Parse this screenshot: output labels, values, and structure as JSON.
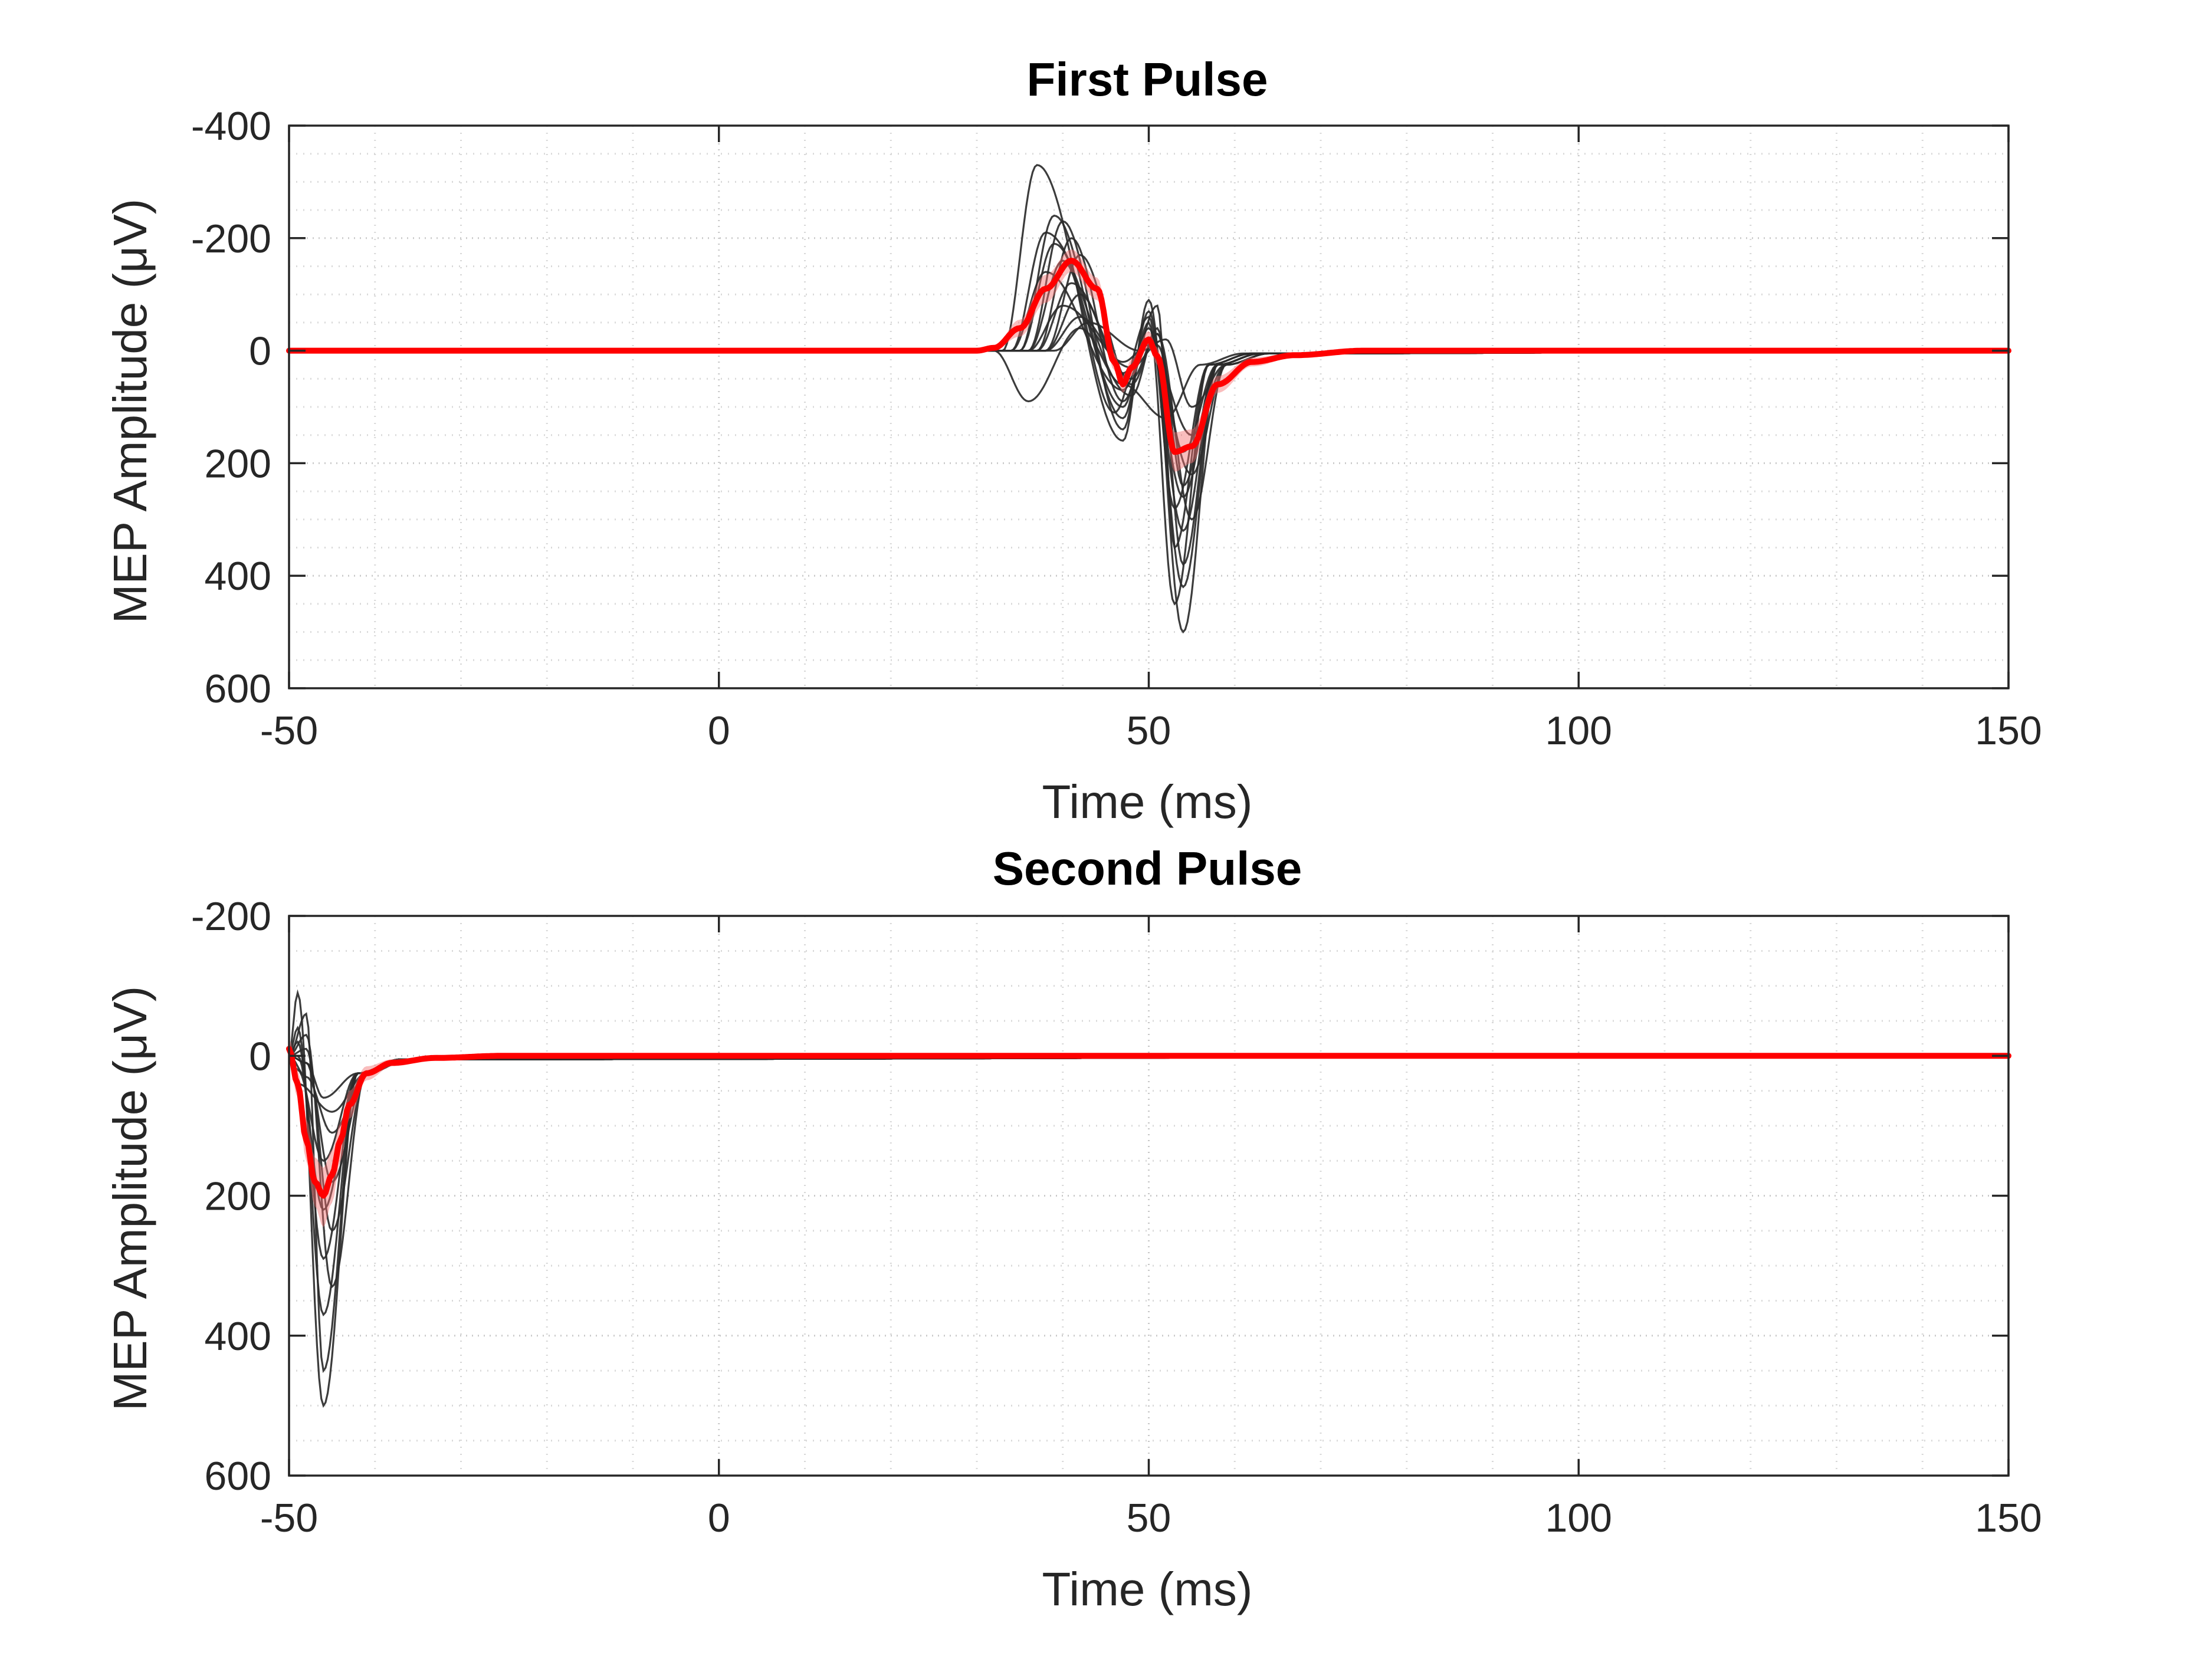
{
  "chart_data": [
    {
      "type": "line",
      "title": "First Pulse",
      "xlabel": "Time (ms)",
      "ylabel": "MEP Amplitude (μV)",
      "xlim": [
        -50,
        150
      ],
      "ylim": [
        -400,
        600
      ],
      "y_axis_reversed": true,
      "xticks": [
        -50,
        0,
        50,
        100,
        150
      ],
      "xtick_labels": [
        "-50",
        "0",
        "50",
        "100",
        "150"
      ],
      "yticks": [
        -400,
        -200,
        0,
        200,
        400,
        600
      ],
      "ytick_labels": [
        "-400",
        "-200",
        "0",
        "200",
        "400",
        "600"
      ],
      "grid": "minor dotted",
      "colors": {
        "trials": "#2b2b2b",
        "mean": "#ff0000",
        "band": "#f26c6c"
      },
      "trials": [
        {
          "peaks": [
            [
              37,
              -330
            ],
            [
              47,
              160
            ],
            [
              50,
              -90
            ],
            [
              54,
              500
            ]
          ]
        },
        {
          "peaks": [
            [
              39,
              -240
            ],
            [
              47,
              120
            ],
            [
              50,
              -50
            ],
            [
              53,
              450
            ]
          ]
        },
        {
          "peaks": [
            [
              40,
              -230
            ],
            [
              47,
              140
            ],
            [
              50,
              -70
            ],
            [
              54,
              420
            ]
          ]
        },
        {
          "peaks": [
            [
              38,
              -210
            ],
            [
              48,
              80
            ],
            [
              51,
              -40
            ],
            [
              54,
              380
            ]
          ]
        },
        {
          "peaks": [
            [
              41,
              -200
            ],
            [
              47,
              90
            ],
            [
              51,
              -80
            ],
            [
              53,
              350
            ]
          ]
        },
        {
          "peaks": [
            [
              39,
              -190
            ],
            [
              47,
              100
            ],
            [
              50,
              -40
            ],
            [
              54,
              320
            ]
          ]
        },
        {
          "peaks": [
            [
              42,
              -170
            ],
            [
              48,
              60
            ],
            [
              51,
              -30
            ],
            [
              55,
              300
            ]
          ]
        },
        {
          "peaks": [
            [
              40,
              -160
            ],
            [
              46,
              110
            ],
            [
              50,
              -60
            ],
            [
              53,
              280
            ]
          ]
        },
        {
          "peaks": [
            [
              38,
              -140
            ],
            [
              47,
              70
            ],
            [
              50,
              -20
            ],
            [
              54,
              260
            ]
          ]
        },
        {
          "peaks": [
            [
              41,
              -120
            ],
            [
              48,
              50
            ],
            [
              51,
              -30
            ],
            [
              54,
              240
            ]
          ]
        },
        {
          "peaks": [
            [
              42,
              -100
            ],
            [
              47,
              40
            ],
            [
              50,
              -20
            ],
            [
              55,
              220
            ]
          ]
        },
        {
          "peaks": [
            [
              40,
              -80
            ],
            [
              48,
              30
            ],
            [
              51,
              -10
            ],
            [
              54,
              180
            ]
          ]
        },
        {
          "peaks": [
            [
              42,
              -60
            ],
            [
              47,
              20
            ],
            [
              50,
              -10
            ],
            [
              55,
              150
            ]
          ]
        },
        {
          "peaks": [
            [
              36,
              90
            ],
            [
              42,
              -40
            ],
            [
              47,
              60
            ],
            [
              52,
              120
            ]
          ]
        },
        {
          "peaks": [
            [
              43,
              -50
            ],
            [
              49,
              0
            ],
            [
              52,
              -20
            ],
            [
              55,
              100
            ]
          ]
        }
      ],
      "mean": {
        "x": [
          -50,
          30,
          32,
          35,
          38,
          41,
          44,
          46,
          47,
          48,
          50,
          51,
          53,
          55,
          58,
          62,
          67,
          75,
          150
        ],
        "y": [
          0,
          0,
          -5,
          -40,
          -110,
          -160,
          -110,
          20,
          60,
          30,
          -20,
          10,
          180,
          170,
          60,
          20,
          8,
          0,
          0
        ]
      },
      "band": {
        "x": [
          -50,
          30,
          32,
          35,
          38,
          41,
          44,
          46,
          47,
          48,
          50,
          51,
          53,
          55,
          58,
          62,
          67,
          75,
          150
        ],
        "lower": [
          0,
          0,
          -8,
          -55,
          -135,
          -180,
          -130,
          5,
          45,
          15,
          -35,
          -5,
          145,
          140,
          45,
          12,
          4,
          0,
          0
        ],
        "upper": [
          0,
          0,
          -2,
          -25,
          -85,
          -140,
          -90,
          35,
          75,
          45,
          -5,
          25,
          215,
          200,
          75,
          28,
          12,
          0,
          0
        ]
      }
    },
    {
      "type": "line",
      "title": "Second Pulse",
      "xlabel": "Time (ms)",
      "ylabel": "MEP Amplitude (μV)",
      "xlim": [
        -50,
        150
      ],
      "ylim": [
        -200,
        600
      ],
      "y_axis_reversed": true,
      "xticks": [
        -50,
        0,
        50,
        100,
        150
      ],
      "xtick_labels": [
        "-50",
        "0",
        "50",
        "100",
        "150"
      ],
      "yticks": [
        -200,
        0,
        200,
        400,
        600
      ],
      "ytick_labels": [
        "-200",
        "0",
        "200",
        "400",
        "600"
      ],
      "grid": "minor dotted",
      "colors": {
        "trials": "#2b2b2b",
        "mean": "#ff0000",
        "band": "#f26c6c"
      },
      "trials": [
        {
          "peaks": [
            [
              -49,
              -90
            ],
            [
              -46,
              500
            ]
          ]
        },
        {
          "peaks": [
            [
              -48,
              -60
            ],
            [
              -46,
              450
            ]
          ]
        },
        {
          "peaks": [
            [
              -49,
              -40
            ],
            [
              -46,
              370
            ]
          ]
        },
        {
          "peaks": [
            [
              -48,
              -30
            ],
            [
              -45,
              330
            ]
          ]
        },
        {
          "peaks": [
            [
              -49,
              -20
            ],
            [
              -46,
              290
            ]
          ]
        },
        {
          "peaks": [
            [
              -48,
              -10
            ],
            [
              -45,
              250
            ]
          ]
        },
        {
          "peaks": [
            [
              -49,
              0
            ],
            [
              -46,
              220
            ]
          ]
        },
        {
          "peaks": [
            [
              -48,
              10
            ],
            [
              -45,
              180
            ]
          ]
        },
        {
          "peaks": [
            [
              -49,
              20
            ],
            [
              -46,
              150
            ]
          ]
        },
        {
          "peaks": [
            [
              -48,
              30
            ],
            [
              -45,
              110
            ]
          ]
        },
        {
          "peaks": [
            [
              -49,
              40
            ],
            [
              -45,
              80
            ]
          ]
        },
        {
          "peaks": [
            [
              -48,
              10
            ],
            [
              -46,
              60
            ]
          ]
        }
      ],
      "mean": {
        "x": [
          -50,
          -49,
          -48,
          -47,
          -46,
          -45,
          -44,
          -43,
          -41,
          -38,
          -33,
          -25,
          150
        ],
        "y": [
          -10,
          40,
          120,
          180,
          200,
          170,
          120,
          70,
          25,
          10,
          3,
          0,
          0
        ]
      },
      "band": {
        "x": [
          -50,
          -49,
          -48,
          -47,
          -46,
          -45,
          -44,
          -43,
          -41,
          -38,
          -33,
          -25,
          150
        ],
        "lower": [
          -25,
          20,
          90,
          145,
          160,
          135,
          95,
          50,
          15,
          5,
          0,
          0,
          0
        ],
        "upper": [
          5,
          60,
          150,
          215,
          245,
          210,
          150,
          90,
          35,
          15,
          6,
          0,
          0
        ]
      }
    }
  ]
}
